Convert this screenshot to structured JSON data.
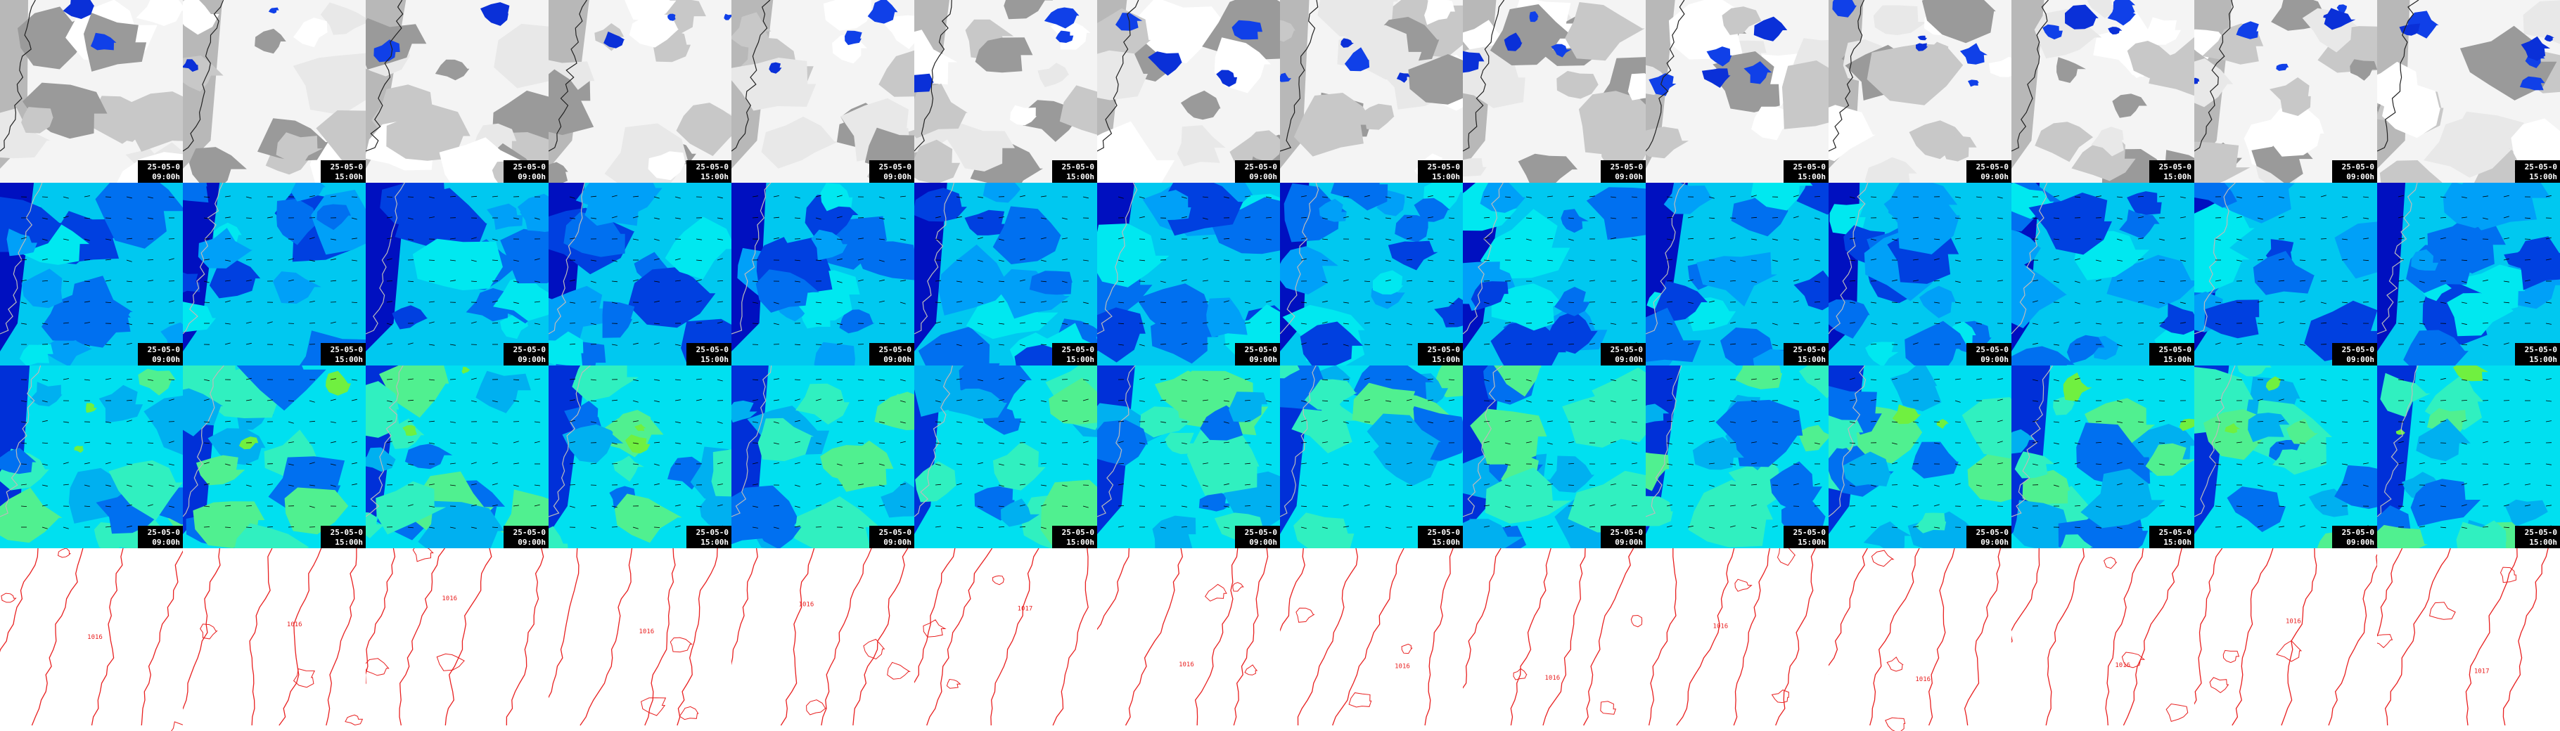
{
  "panels": [
    {
      "cells": [
        {
          "date": "25-05-0",
          "time": "09:00h"
        },
        {
          "date": "25-05-0",
          "time": "15:00h"
        },
        {
          "date": "25-05-0",
          "time": "09:00h"
        },
        {
          "date": "25-05-0",
          "time": "15:00h"
        },
        {
          "date": "25-05-0",
          "time": "09:00h"
        },
        {
          "date": "25-05-0",
          "time": "15:00h"
        },
        {
          "date": "25-05-0",
          "time": "09:00h"
        },
        {
          "date": "25-05-0",
          "time": "15:00h"
        },
        {
          "date": "25-05-0",
          "time": "09:00h"
        },
        {
          "date": "25-05-0",
          "time": "15:00h"
        },
        {
          "date": "25-05-0",
          "time": "09:00h"
        },
        {
          "date": "25-05-0",
          "time": "15:00h"
        },
        {
          "date": "25-05-0",
          "time": "09:00h"
        },
        {
          "date": "25-05-0",
          "time": "15:00h"
        }
      ]
    },
    {
      "cells": [
        {
          "date": "25-05-0",
          "time": "09:00h"
        },
        {
          "date": "25-05-0",
          "time": "15:00h"
        },
        {
          "date": "25-05-0",
          "time": "09:00h"
        },
        {
          "date": "25-05-0",
          "time": "15:00h"
        },
        {
          "date": "25-05-0",
          "time": "09:00h"
        },
        {
          "date": "25-05-0",
          "time": "15:00h"
        },
        {
          "date": "25-05-0",
          "time": "09:00h"
        },
        {
          "date": "25-05-0",
          "time": "15:00h"
        },
        {
          "date": "25-05-0",
          "time": "09:00h"
        },
        {
          "date": "25-05-0",
          "time": "15:00h"
        },
        {
          "date": "25-05-0",
          "time": "09:00h"
        },
        {
          "date": "25-05-0",
          "time": "15:00h"
        },
        {
          "date": "25-05-0",
          "time": "09:00h"
        },
        {
          "date": "25-05-0",
          "time": "15:00h"
        }
      ]
    },
    {
      "cells": [
        {
          "date": "25-05-0",
          "time": "09:00h"
        },
        {
          "date": "25-05-0",
          "time": "15:00h"
        },
        {
          "date": "25-05-0",
          "time": "09:00h"
        },
        {
          "date": "25-05-0",
          "time": "15:00h"
        },
        {
          "date": "25-05-0",
          "time": "09:00h"
        },
        {
          "date": "25-05-0",
          "time": "15:00h"
        },
        {
          "date": "25-05-0",
          "time": "09:00h"
        },
        {
          "date": "25-05-0",
          "time": "15:00h"
        },
        {
          "date": "25-05-0",
          "time": "09:00h"
        },
        {
          "date": "25-05-0",
          "time": "15:00h"
        },
        {
          "date": "25-05-0",
          "time": "09:00h"
        },
        {
          "date": "25-05-0",
          "time": "15:00h"
        },
        {
          "date": "25-05-0",
          "time": "09:00h"
        },
        {
          "date": "25-05-0",
          "time": "15:00h"
        }
      ]
    }
  ],
  "contours": {
    "cells": [
      {
        "label": "1016"
      },
      {
        "label": "1016"
      },
      {
        "label": "1016"
      },
      {
        "label": "1016"
      },
      {
        "label": "1016"
      },
      {
        "label": "1017"
      },
      {
        "label": "1016"
      },
      {
        "label": "1016"
      },
      {
        "label": "1016"
      },
      {
        "label": "1016"
      },
      {
        "label": "1016"
      },
      {
        "label": "1016"
      },
      {
        "label": "1016"
      },
      {
        "label": "1017"
      }
    ]
  }
}
